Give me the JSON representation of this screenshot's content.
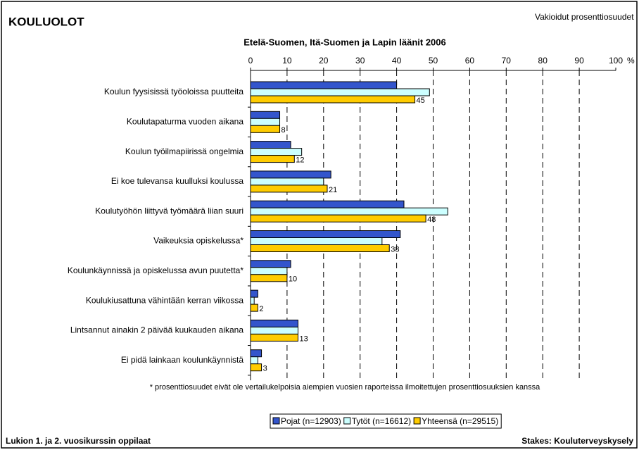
{
  "chart_data": {
    "type": "hbar",
    "header": "KOULUOLOT",
    "subheader": "Vakioidut prosenttiosuudet",
    "title": "Etelä-Suomen, Itä-Suomen ja Lapin läänit 2006",
    "axis_unit": "%",
    "categories": [
      "Koulun fyysisissä työoloissa puutteita",
      "Koulutapaturma vuoden aikana",
      "Koulun työilmapiirissä ongelmia",
      "Ei koe tulevansa kuulluksi koulussa",
      "Koulutyöhön liittyvä työmäärä liian suuri",
      "Vaikeuksia opiskelussa*",
      "Koulunkäynnissä ja opiskelussa avun puutetta*",
      "Koulukiusattuna vähintään kerran viikossa",
      "Lintsannut ainakin 2 päivää kuukauden aikana",
      "Ei pidä lainkaan koulunkäynnistä"
    ],
    "series": [
      {
        "name": "Pojat (n=12903)",
        "color": "#3355cc",
        "values": [
          40,
          8,
          11,
          22,
          42,
          41,
          11,
          2,
          13,
          3
        ]
      },
      {
        "name": "Tytöt (n=16612)",
        "color": "#ccffff",
        "values": [
          49,
          8,
          14,
          20,
          54,
          36,
          10,
          1,
          13,
          2
        ]
      },
      {
        "name": "Yhteensä (n=29515)",
        "color": "#ffcc00",
        "values": [
          45,
          8,
          12,
          21,
          48,
          38,
          10,
          2,
          13,
          3
        ],
        "labels": true
      }
    ],
    "xlim": [
      0,
      100
    ],
    "xticks": [
      0,
      10,
      20,
      30,
      40,
      50,
      60,
      70,
      80,
      90,
      100
    ],
    "grid": true,
    "footnote": "* prosenttiosuudet eivät ole vertailukelpoisia aiempien vuosien raporteissa ilmoitettujen prosenttiosuuksien kanssa",
    "footer_left": "Lukion 1. ja 2. vuosikurssin oppilaat",
    "footer_right": "Stakes: Kouluterveyskysely"
  }
}
